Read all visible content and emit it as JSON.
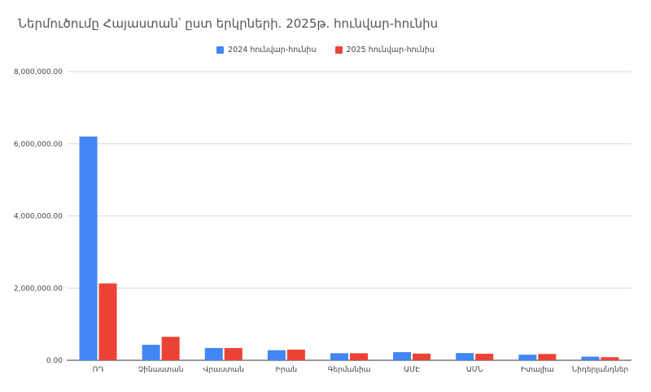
{
  "chart_data": {
    "type": "bar",
    "title": "Ներմուծումը Հայաստան՝ ըստ երկրների. 2025թ. հունվար-հունիս",
    "categories": [
      "ՌԴ",
      "Չինաստան",
      "Վրաստան",
      "Իրան",
      "Գերմանիա",
      "ԱՄԷ",
      "ԱՄՆ",
      "Իտալիա",
      "Նիդերլանդներ"
    ],
    "series": [
      {
        "name": "2024 հունվար-հունիս",
        "color": "#4285f4",
        "values": [
          6200000,
          430000,
          340000,
          280000,
          195000,
          225000,
          200000,
          155000,
          100000
        ]
      },
      {
        "name": "2025 հունվար-հունիս",
        "color": "#ea4335",
        "values": [
          2130000,
          650000,
          340000,
          295000,
          195000,
          185000,
          180000,
          175000,
          85000
        ]
      }
    ],
    "yticks": [
      "0.00",
      "2,000,000.00",
      "4,000,000.00",
      "6,000,000.00",
      "8,000,000.00"
    ],
    "ylim": [
      0,
      8000000
    ],
    "grid": true,
    "legend_position": "top-center"
  }
}
